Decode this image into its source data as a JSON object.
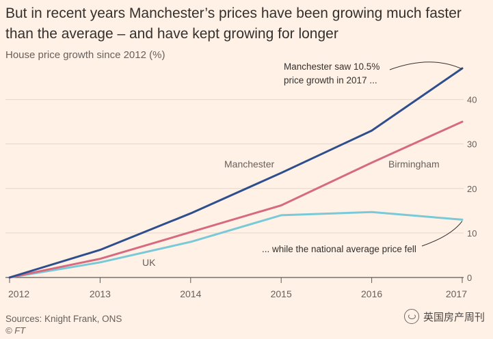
{
  "title": "But in recent years Manchester’s prices have been growing much faster than the average – and have kept growing for longer",
  "subtitle": "House price growth since 2012 (%)",
  "source": "Sources: Knight Frank, ONS",
  "credit": "© FT",
  "watermark": "英国房产周刊",
  "chart_data": {
    "type": "line",
    "title": "But in recent years Manchester’s prices have been growing much faster than the average – and have kept growing for longer",
    "ylabel": "House price growth since 2012 (%)",
    "xlabel": "",
    "x": [
      2012,
      2013,
      2014,
      2015,
      2016,
      2017
    ],
    "x_tick_labels": [
      "2012",
      "2013",
      "2014",
      "2015",
      "2016",
      "2017"
    ],
    "y_ticks": [
      0,
      10,
      20,
      30,
      40
    ],
    "y_tick_labels": [
      "0",
      "10",
      "20",
      "30",
      "40"
    ],
    "ylim": [
      0,
      47
    ],
    "grid": true,
    "series": [
      {
        "name": "Manchester",
        "color": "#2e4e8d",
        "values": [
          0,
          6.2,
          14.4,
          23.5,
          33.0,
          47.0
        ]
      },
      {
        "name": "Birmingham",
        "color": "#d66a7f",
        "values": [
          0,
          4.2,
          10.2,
          16.2,
          25.8,
          35.0
        ]
      },
      {
        "name": "UK",
        "color": "#79c9d8",
        "values": [
          0,
          3.4,
          8.0,
          14.0,
          14.7,
          13.0
        ]
      }
    ],
    "annotations": [
      {
        "text_lines": [
          "Manchester saw 10.5%",
          "price growth in 2017 ..."
        ],
        "target": "Manchester 2017"
      },
      {
        "text_lines": [
          "... while the national average price fell"
        ],
        "target": "UK 2017"
      }
    ]
  }
}
